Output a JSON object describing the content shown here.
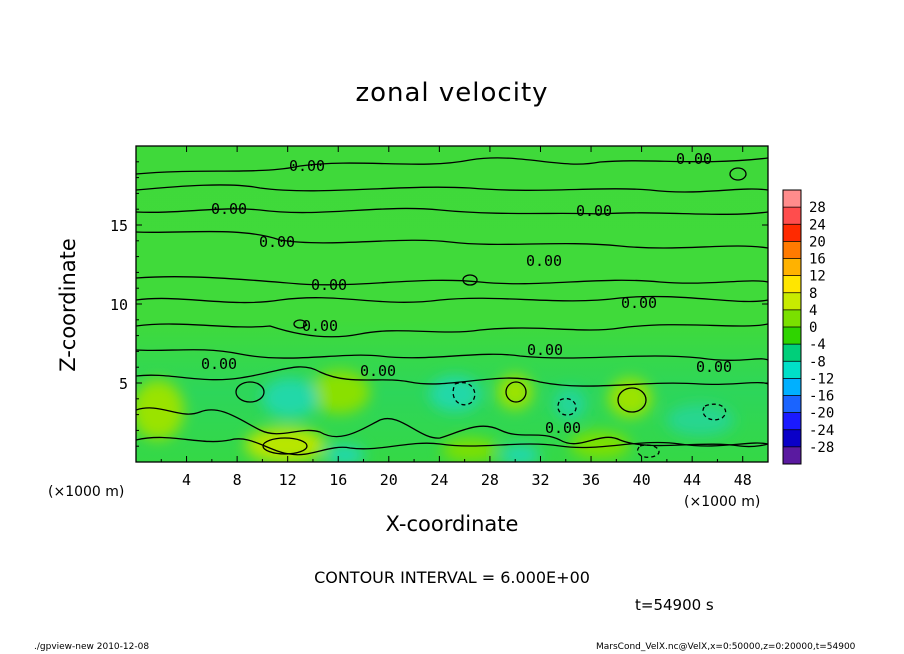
{
  "chart_data": {
    "type": "heatmap",
    "title": "zonal velocity",
    "xlabel": "X-coordinate",
    "ylabel": "Z-coordinate",
    "x_unit": "(×1000 m)",
    "x_ticks": [
      4,
      8,
      12,
      16,
      20,
      24,
      28,
      32,
      36,
      40,
      44,
      48
    ],
    "y_ticks": [
      5,
      10,
      15
    ],
    "xlim": [
      0,
      50
    ],
    "ylim": [
      0,
      20
    ],
    "colorbar_levels": [
      28,
      24,
      20,
      16,
      12,
      8,
      4,
      0,
      -4,
      -8,
      -12,
      -16,
      -20,
      -24,
      -28
    ],
    "colorbar_colors": [
      "#ff8c8c",
      "#ff4d4d",
      "#ff2a00",
      "#ff7a00",
      "#ffb200",
      "#ffe600",
      "#c8eb00",
      "#7ae000",
      "#2fd400",
      "#00cf7a",
      "#00e0c8",
      "#00b0ff",
      "#1a64ff",
      "#1a1aff",
      "#0a00c8",
      "#5a1aa0"
    ],
    "contour_labels": [
      "0.00",
      "0.00",
      "0.00",
      "0.00",
      "0.00",
      "0.00",
      "0.00",
      "0.00",
      "0.00",
      "0.00",
      "0.00",
      "0.00",
      "0.00",
      "0.00"
    ],
    "contour_interval": "CONTOUR INTERVAL = 6.000E+00",
    "time_label": "t=54900 s"
  },
  "footer": {
    "left": "./gpview-new  2010-12-08",
    "right": "MarsCond_VelX.nc@VelX,x=0:50000,z=0:20000,t=54900"
  }
}
